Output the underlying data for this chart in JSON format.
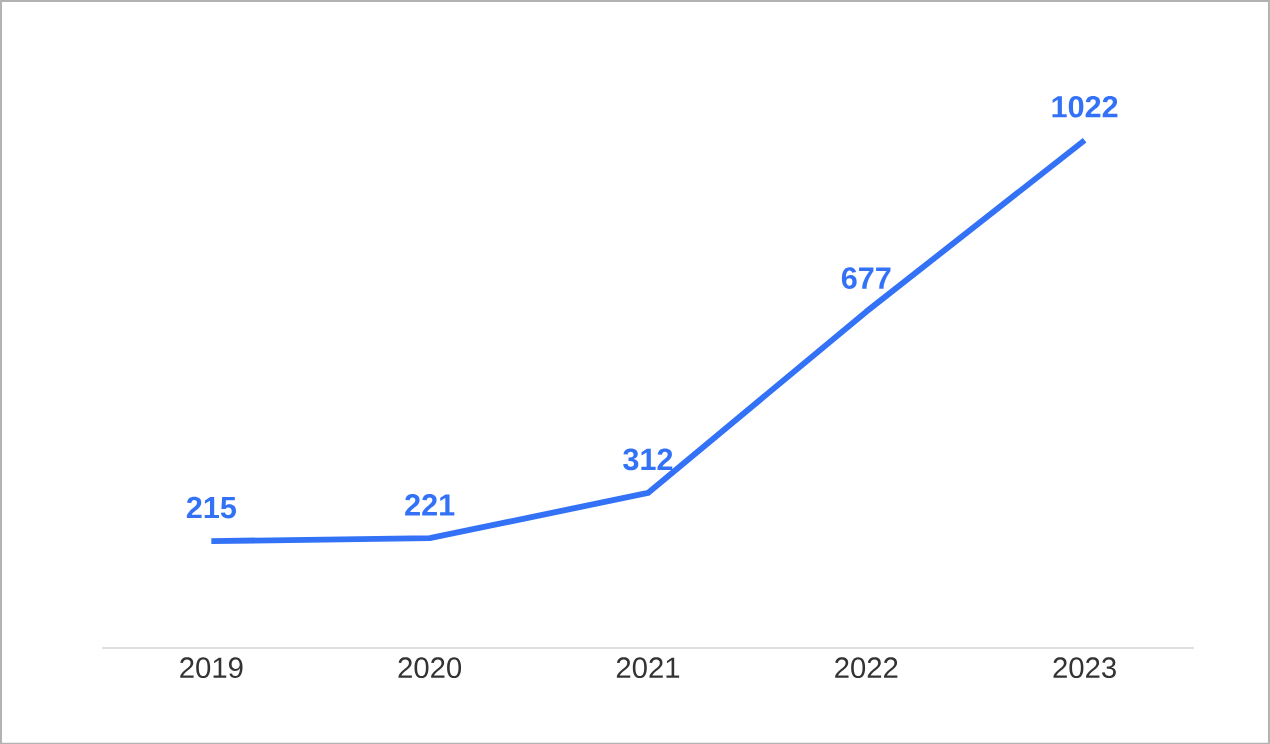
{
  "chart_data": {
    "type": "line",
    "categories": [
      "2019",
      "2020",
      "2021",
      "2022",
      "2023"
    ],
    "series": [
      {
        "color": "#3372f6",
        "values": [
          215,
          221,
          312,
          677,
          1022
        ]
      }
    ],
    "data_labels": true,
    "tick_labels": "x",
    "marker": "none",
    "line_style": "solid"
  }
}
